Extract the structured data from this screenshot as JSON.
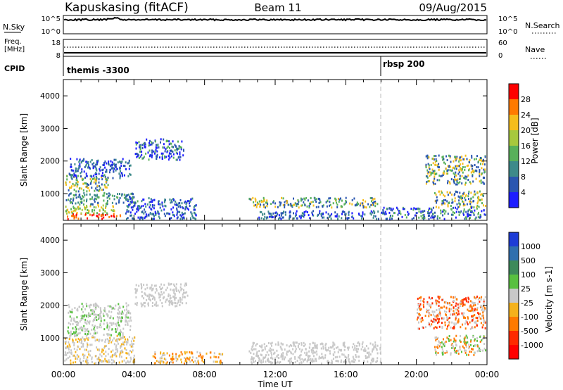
{
  "header": {
    "station": "Kapuskasing (fitACF)",
    "beam": "Beam 11",
    "date": "09/Aug/2015"
  },
  "top_panels": {
    "nsky_label": "N.Sky",
    "nsearch_label": "N.Search",
    "noise_ticks": [
      "10^5",
      "10^0"
    ],
    "freq_label": "Freq.",
    "freq_unit": "[MHz]",
    "freq_ticks": [
      "18",
      "8"
    ],
    "nave_ticks": [
      "60",
      "0"
    ],
    "nave_label": "Nave",
    "cpid_label": "CPID",
    "cpid_entries": [
      {
        "name": "themis -3300",
        "start": "00:00"
      },
      {
        "name": "rbsp 200",
        "start": "18:00"
      }
    ]
  },
  "chart_data": [
    {
      "type": "heatmap",
      "title": "",
      "xlabel": "Time UT",
      "ylabel": "Slant Range [km]",
      "x_ticks": [
        "00:00",
        "04:00",
        "08:00",
        "12:00",
        "16:00",
        "20:00",
        "00:00"
      ],
      "x_range_hours": [
        0,
        24
      ],
      "y_ticks": [
        1000,
        2000,
        3000,
        4000
      ],
      "ylim": [
        180,
        4500
      ],
      "colorbar": {
        "label": "Power [dB]",
        "ticks": [
          "4",
          "8",
          "12",
          "16",
          "20",
          "24",
          "28"
        ],
        "colors": [
          "#1d1dff",
          "#2a56b0",
          "#3d8a8a",
          "#58b05a",
          "#a7c83d",
          "#f5bd1b",
          "#ff7a00",
          "#ff0000"
        ]
      },
      "echo_regions": [
        {
          "t": [
            0.1,
            3.2
          ],
          "r": [
            200,
            420
          ],
          "levels": [
            6,
            7,
            7
          ]
        },
        {
          "t": [
            0.1,
            3.0
          ],
          "r": [
            420,
            700
          ],
          "levels": [
            3,
            4,
            5
          ]
        },
        {
          "t": [
            0.1,
            4.2
          ],
          "r": [
            700,
            1050
          ],
          "levels": [
            1,
            2,
            3
          ]
        },
        {
          "t": [
            0.0,
            2.5
          ],
          "r": [
            1100,
            1600
          ],
          "levels": [
            1,
            3,
            5
          ]
        },
        {
          "t": [
            0.3,
            3.8
          ],
          "r": [
            1500,
            2100
          ],
          "levels": [
            0,
            1,
            2
          ]
        },
        {
          "t": [
            4.0,
            6.8
          ],
          "r": [
            2050,
            2700
          ],
          "levels": [
            0,
            1,
            3
          ]
        },
        {
          "t": [
            3.5,
            7.5
          ],
          "r": [
            200,
            900
          ],
          "levels": [
            0,
            1,
            2
          ]
        },
        {
          "t": [
            10.5,
            17.8
          ],
          "r": [
            600,
            900
          ],
          "levels": [
            1,
            3,
            5
          ]
        },
        {
          "t": [
            11.0,
            18.0
          ],
          "r": [
            200,
            500
          ],
          "levels": [
            0,
            1,
            2
          ]
        },
        {
          "t": [
            20.5,
            24.0
          ],
          "r": [
            1300,
            2200
          ],
          "levels": [
            1,
            3,
            5
          ]
        },
        {
          "t": [
            21.0,
            24.0
          ],
          "r": [
            600,
            1100
          ],
          "levels": [
            1,
            3,
            5
          ]
        },
        {
          "t": [
            18.0,
            24.0
          ],
          "r": [
            200,
            600
          ],
          "levels": [
            0,
            1,
            3
          ]
        }
      ]
    },
    {
      "type": "heatmap",
      "title": "",
      "xlabel": "Time UT",
      "ylabel": "Slant Range [km]",
      "x_ticks": [
        "00:00",
        "04:00",
        "08:00",
        "12:00",
        "16:00",
        "20:00",
        "00:00"
      ],
      "x_range_hours": [
        0,
        24
      ],
      "y_ticks": [
        1000,
        2000,
        3000,
        4000
      ],
      "ylim": [
        180,
        4500
      ],
      "colorbar": {
        "label": "Velocity [m s-1]",
        "ticks": [
          "1000",
          "500",
          "100",
          "25",
          "-25",
          "-100",
          "-500",
          "-1000"
        ],
        "colors": [
          "#1d3cd6",
          "#2f6fae",
          "#3d8a5a",
          "#58c040",
          "#c8c8c8",
          "#f5b21b",
          "#ff7a00",
          "#ff2a00",
          "#ff0000"
        ]
      },
      "ground_scatter_color": "#c8c8c8",
      "echo_regions": [
        {
          "t": [
            0.0,
            4.0
          ],
          "r": [
            200,
            1100
          ],
          "levels": [
            4,
            4,
            5
          ]
        },
        {
          "t": [
            0.2,
            3.8
          ],
          "r": [
            1100,
            2100
          ],
          "levels": [
            4,
            4,
            3
          ]
        },
        {
          "t": [
            4.0,
            7.0
          ],
          "r": [
            2000,
            2700
          ],
          "levels": [
            4,
            4,
            4
          ]
        },
        {
          "t": [
            5.0,
            9.0
          ],
          "r": [
            200,
            600
          ],
          "levels": [
            5,
            4,
            6
          ]
        },
        {
          "t": [
            10.5,
            18.0
          ],
          "r": [
            200,
            900
          ],
          "levels": [
            4,
            4,
            4
          ]
        },
        {
          "t": [
            20.0,
            24.0
          ],
          "r": [
            1300,
            2300
          ],
          "levels": [
            4,
            6,
            7
          ]
        },
        {
          "t": [
            21.0,
            24.0
          ],
          "r": [
            500,
            1100
          ],
          "levels": [
            3,
            6,
            4
          ]
        }
      ]
    }
  ]
}
